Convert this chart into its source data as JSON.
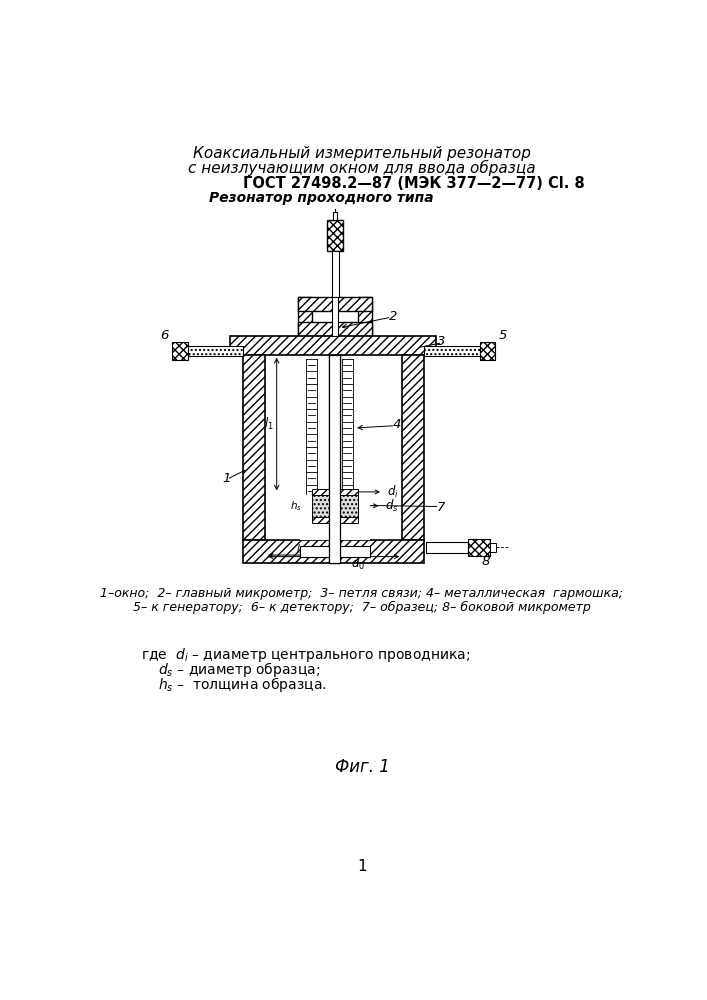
{
  "title_line1": "Коаксиальный измерительный резонатор",
  "title_line2": "с неизлучающим окном для ввода образца",
  "gost_text": "ГОСТ 27498.2—87 (МЭК 377—2—77) Cl. 8",
  "resonator_type": "Резонатор проходного типа",
  "caption_line1": "1–окно;  2– главный микрометр;  3– петля связи; 4– металлическая  гармошка;",
  "caption_line2": "5– к генератору;  6– к детектору;  7– образец; 8– боковой микрометр",
  "fig_caption": "Фиг. 1",
  "page_num": "1",
  "bg_color": "#ffffff",
  "draw_color": "#000000"
}
